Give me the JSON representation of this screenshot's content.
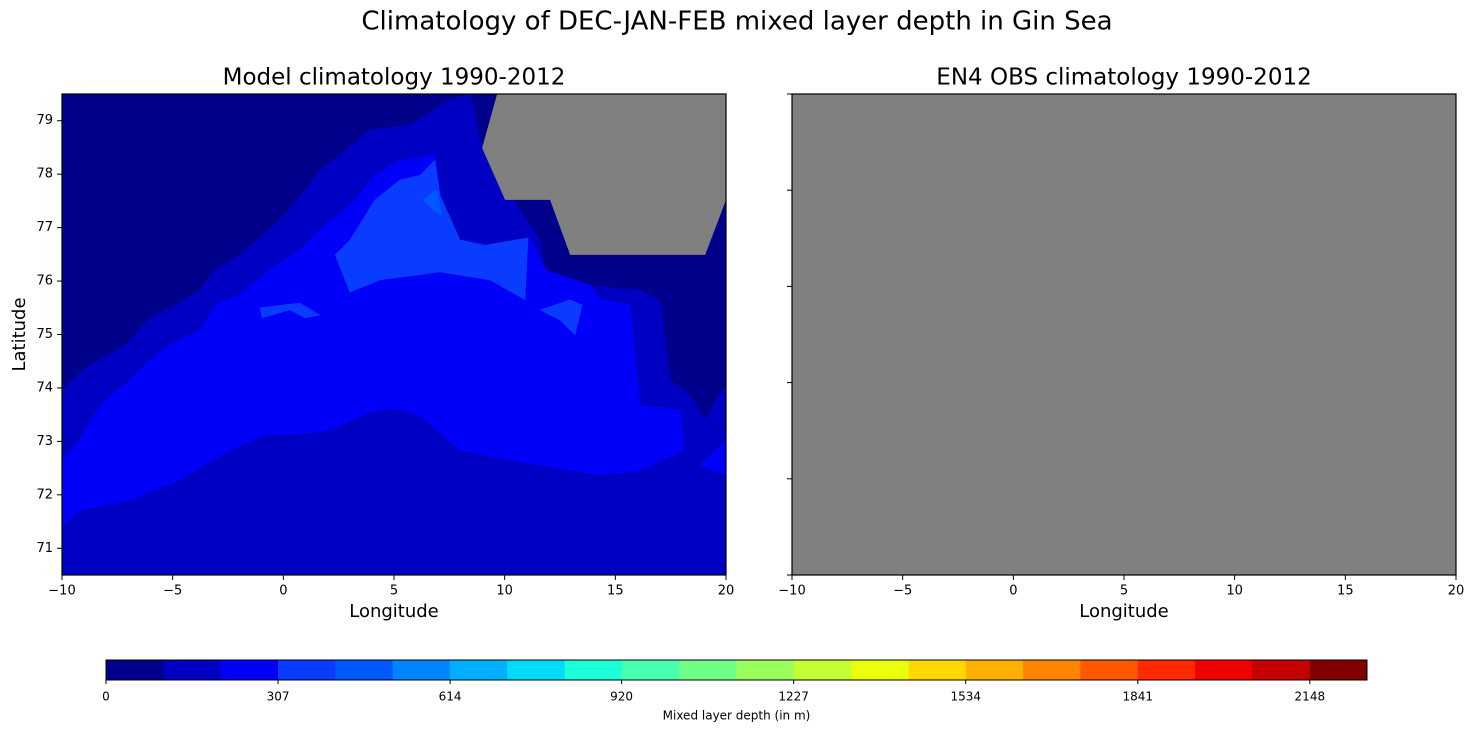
{
  "title": "Climatology of DEC-JAN-FEB mixed layer depth in Gin Sea",
  "chart_data": [
    {
      "type": "contourf",
      "title": "Model climatology 1990-2012",
      "xlabel": "Longitude",
      "ylabel": "Latitude",
      "xlim": [
        -10,
        20
      ],
      "ylim": [
        70.5,
        79.5
      ],
      "xticks": [
        {
          "value": -10,
          "label": "−10"
        },
        {
          "value": -5,
          "label": "−5"
        },
        0,
        5,
        10,
        15,
        20
      ],
      "yticks": [
        71,
        72,
        73,
        74,
        75,
        76,
        77,
        78,
        79
      ],
      "ytick_labels": true,
      "regions": [
        {
          "value": 51,
          "points": [
            [
              -10,
              70.5
            ],
            [
              20,
              70.5
            ],
            [
              20,
              79.5
            ],
            [
              -10,
              79.5
            ]
          ]
        },
        {
          "value": 153,
          "points": [
            [
              -10,
              73.96
            ],
            [
              -8.96,
              74.37
            ],
            [
              -7.15,
              74.8
            ],
            [
              -6.02,
              75.31
            ],
            [
              -4.89,
              75.55
            ],
            [
              -3.76,
              75.83
            ],
            [
              -3.09,
              76.21
            ],
            [
              -1.96,
              76.49
            ],
            [
              0.08,
              77.24
            ],
            [
              1.66,
              78.08
            ],
            [
              2.56,
              78.36
            ],
            [
              3.92,
              78.83
            ],
            [
              5.73,
              78.92
            ],
            [
              7.53,
              79.39
            ],
            [
              8.44,
              79.5
            ],
            [
              8.89,
              78.64
            ],
            [
              9.79,
              77.89
            ],
            [
              10.7,
              77.33
            ],
            [
              11.6,
              76.77
            ],
            [
              11.83,
              76.21
            ],
            [
              13.41,
              75.93
            ],
            [
              16.12,
              75.83
            ],
            [
              17.02,
              75.65
            ],
            [
              17.25,
              74.9
            ],
            [
              17.47,
              74.15
            ],
            [
              18.38,
              73.87
            ],
            [
              19.06,
              73.4
            ],
            [
              19.51,
              73.77
            ],
            [
              20,
              74.05
            ],
            [
              20,
              70.5
            ],
            [
              -10,
              70.5
            ]
          ]
        },
        {
          "value": 256,
          "points": [
            [
              -10,
              72.65
            ],
            [
              -9.19,
              73.03
            ],
            [
              -8.28,
              73.68
            ],
            [
              -7.15,
              74.06
            ],
            [
              -6.02,
              74.52
            ],
            [
              -5.12,
              74.8
            ],
            [
              -3.76,
              75.08
            ],
            [
              -3.09,
              75.55
            ],
            [
              -1.96,
              75.74
            ],
            [
              -0.6,
              76.21
            ],
            [
              0.75,
              76.58
            ],
            [
              1.66,
              76.96
            ],
            [
              3.01,
              77.42
            ],
            [
              4.14,
              77.98
            ],
            [
              5.27,
              78.26
            ],
            [
              6.85,
              78.36
            ],
            [
              7.08,
              77.61
            ],
            [
              7.98,
              76.77
            ],
            [
              9.34,
              76.67
            ],
            [
              11.15,
              76.77
            ],
            [
              11.83,
              76.21
            ],
            [
              13.86,
              75.93
            ],
            [
              14.31,
              75.65
            ],
            [
              15.67,
              75.55
            ],
            [
              16.12,
              73.68
            ],
            [
              17.93,
              73.59
            ],
            [
              18.15,
              72.84
            ],
            [
              16.12,
              72.46
            ],
            [
              14.31,
              72.37
            ],
            [
              11.6,
              72.56
            ],
            [
              9.79,
              72.69
            ],
            [
              7.98,
              72.84
            ],
            [
              6.18,
              73.49
            ],
            [
              5.05,
              73.62
            ],
            [
              3.92,
              73.55
            ],
            [
              2.11,
              73.21
            ],
            [
              0.3,
              73.12
            ],
            [
              -0.83,
              73.12
            ],
            [
              -2.41,
              72.84
            ],
            [
              -4.67,
              72.28
            ],
            [
              -6.93,
              71.9
            ],
            [
              -9.19,
              71.72
            ],
            [
              -10,
              71.43
            ]
          ]
        },
        {
          "value": 256,
          "points": [
            [
              18.83,
              72.56
            ],
            [
              20,
              73.03
            ],
            [
              20,
              72.37
            ]
          ]
        },
        {
          "value": 358,
          "points": [
            [
              2.34,
              76.49
            ],
            [
              3.01,
              76.77
            ],
            [
              4.14,
              77.52
            ],
            [
              5.27,
              77.89
            ],
            [
              6.18,
              77.98
            ],
            [
              6.85,
              78.27
            ],
            [
              7.08,
              77.61
            ],
            [
              7.98,
              76.77
            ],
            [
              9.11,
              76.67
            ],
            [
              11.06,
              76.81
            ],
            [
              10.92,
              75.65
            ],
            [
              9.34,
              76.02
            ],
            [
              7.08,
              76.17
            ],
            [
              4.37,
              76.02
            ],
            [
              3.01,
              75.79
            ]
          ]
        },
        {
          "value": 358,
          "points": [
            [
              11.6,
              75.46
            ],
            [
              12.96,
              75.65
            ],
            [
              13.5,
              75.55
            ],
            [
              13.18,
              74.99
            ],
            [
              12.5,
              75.27
            ]
          ]
        },
        {
          "value": 358,
          "points": [
            [
              -1.05,
              75.5
            ],
            [
              0.75,
              75.59
            ],
            [
              1.66,
              75.36
            ],
            [
              0.98,
              75.31
            ],
            [
              0.3,
              75.46
            ],
            [
              -0.96,
              75.31
            ]
          ]
        },
        {
          "value": 460,
          "points": [
            [
              6.31,
              77.52
            ],
            [
              6.94,
              77.7
            ],
            [
              7.17,
              77.24
            ],
            [
              6.85,
              77.3
            ]
          ]
        }
      ],
      "mask_color": "#808080",
      "mask": [
        [
          9.66,
          79.5
        ],
        [
          20,
          79.5
        ],
        [
          20,
          77.52
        ],
        [
          19.06,
          76.49
        ],
        [
          12.96,
          76.49
        ],
        [
          12.05,
          77.52
        ],
        [
          10.02,
          77.52
        ],
        [
          8.98,
          78.49
        ]
      ]
    },
    {
      "type": "contourf",
      "title": "EN4 OBS climatology 1990-2012",
      "xlabel": "Longitude",
      "xlim": [
        -10,
        20
      ],
      "ylim": [
        0,
        1
      ],
      "xticks": [
        {
          "value": -10,
          "label": "−10"
        },
        {
          "value": -5,
          "label": "−5"
        },
        0,
        5,
        10,
        15,
        20
      ],
      "yticks": [
        0,
        0.2,
        0.4,
        0.6,
        0.8,
        1
      ],
      "ytick_labels": false,
      "mask_color": "#808080",
      "mask": [
        [
          -10,
          0
        ],
        [
          20,
          0
        ],
        [
          20,
          1
        ],
        [
          -10,
          1
        ]
      ]
    }
  ],
  "colorbar": {
    "label": "Mixed layer depth (in m)",
    "clim": [
      0,
      2250
    ],
    "ticks": [
      0,
      307,
      614,
      920,
      1227,
      1534,
      1841,
      2148
    ],
    "colors": [
      "#00008b",
      "#0000c4",
      "#0000fa",
      "#0a3cff",
      "#0058ff",
      "#0084ff",
      "#00b0ff",
      "#00dcf8",
      "#1cffd8",
      "#48ffb0",
      "#70ff86",
      "#9aff5c",
      "#c4ff34",
      "#ecff0a",
      "#ffd800",
      "#ffb000",
      "#ff8400",
      "#ff5800",
      "#ff2800",
      "#f00000",
      "#c40000",
      "#800000"
    ]
  }
}
